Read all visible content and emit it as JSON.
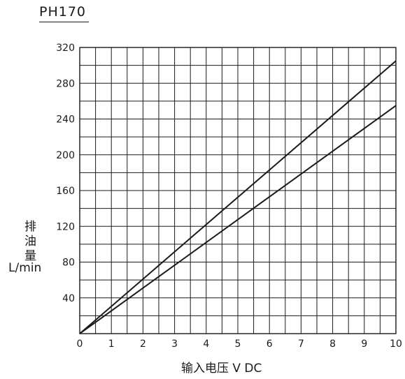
{
  "chart_data": {
    "type": "line",
    "title": "PH170",
    "xlabel": "输入电压 V   DC",
    "ylabel_chars": [
      "排",
      "油",
      "量"
    ],
    "ylabel_unit": "L/min",
    "xlim": [
      0,
      10
    ],
    "ylim": [
      0,
      320
    ],
    "x_ticks": [
      0,
      1,
      2,
      3,
      4,
      5,
      6,
      7,
      8,
      9,
      10
    ],
    "y_ticks": [
      40,
      80,
      120,
      160,
      200,
      240,
      280,
      320
    ],
    "grid": true,
    "series": [
      {
        "x": [
          0,
          10
        ],
        "y": [
          0,
          305
        ]
      },
      {
        "x": [
          0,
          10
        ],
        "y": [
          0,
          255
        ]
      }
    ],
    "line_color": "#1a1a1a"
  }
}
